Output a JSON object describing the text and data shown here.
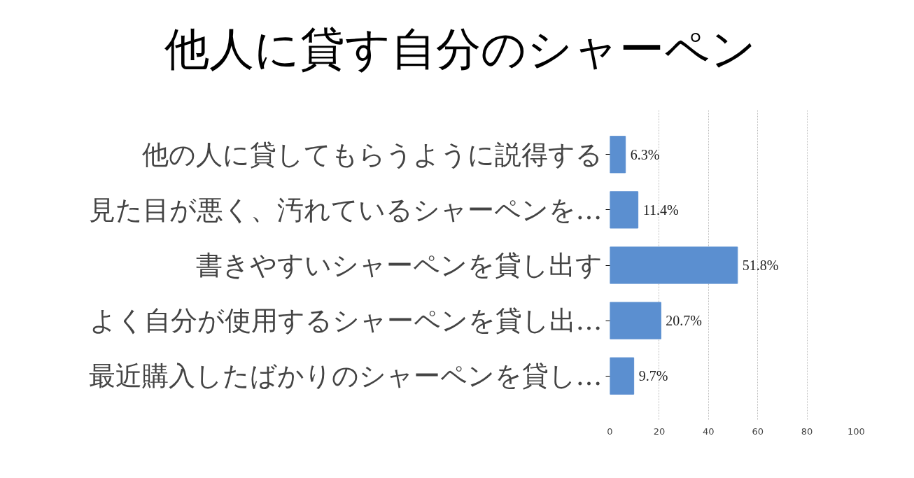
{
  "chart_data": {
    "type": "bar",
    "orientation": "horizontal",
    "title": "他人に貸す自分のシャーペン",
    "categories": [
      "他の人に貸してもらうように説得する",
      "見た目が悪く、汚れているシャーペンを…",
      "書きやすいシャーペンを貸し出す",
      "よく自分が使用するシャーペンを貸し出…",
      "最近購入したばかりのシャーペンを貸し…"
    ],
    "values": [
      6.3,
      11.4,
      51.8,
      20.7,
      9.7
    ],
    "value_labels": [
      "6.3%",
      "11.4%",
      "51.8%",
      "20.7%",
      "9.7%"
    ],
    "color": "#5b8fd0",
    "xlim": [
      0,
      100
    ],
    "xticks": [
      0,
      20,
      40,
      60,
      80,
      100
    ],
    "grid": "x"
  }
}
